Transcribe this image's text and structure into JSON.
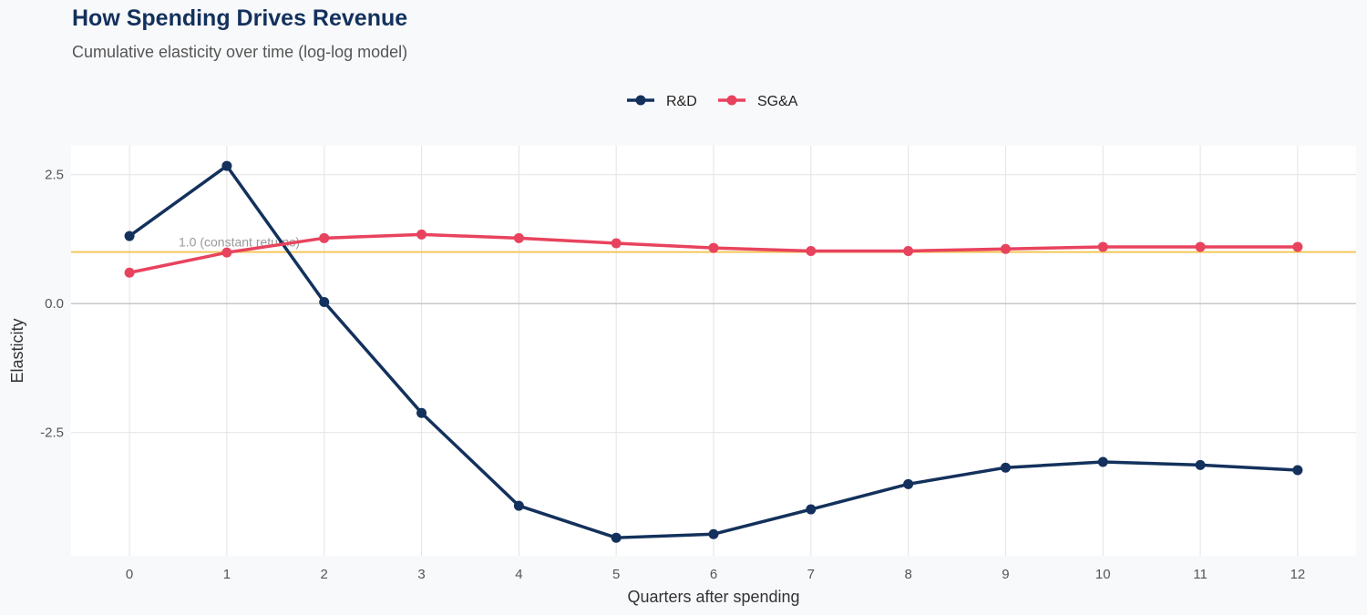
{
  "chart_data": {
    "type": "line",
    "title": "How Spending Drives Revenue",
    "subtitle": "Cumulative elasticity over time (log-log model)",
    "xlabel": "Quarters after spending",
    "ylabel": "Elasticity",
    "x": [
      0,
      1,
      2,
      3,
      4,
      5,
      6,
      7,
      8,
      9,
      10,
      11,
      12
    ],
    "xticks": [
      "0",
      "1",
      "2",
      "3",
      "4",
      "5",
      "6",
      "7",
      "8",
      "9",
      "10",
      "11",
      "12"
    ],
    "yticks": [
      {
        "v": 2.5,
        "label": "2.5"
      },
      {
        "v": 0,
        "label": "0.0"
      },
      {
        "v": -2.5,
        "label": "-2.5"
      }
    ],
    "xlim": [
      -0.6,
      12.6
    ],
    "ylim": [
      -4.89,
      3.06
    ],
    "grid": true,
    "legend_position": "top",
    "reference_line": {
      "y": 1.0,
      "label": "1.0 (constant returns)",
      "color": "#f5c65a"
    },
    "zero_line_color": "#c8c8c8",
    "series": [
      {
        "name": "R&D",
        "color": "#13315c",
        "values": [
          1.31,
          2.67,
          0.03,
          -2.12,
          -3.92,
          -4.54,
          -4.47,
          -3.99,
          -3.5,
          -3.18,
          -3.07,
          -3.13,
          -3.23
        ]
      },
      {
        "name": "SG&A",
        "color": "#e8435e",
        "values": [
          0.6,
          0.99,
          1.27,
          1.34,
          1.27,
          1.17,
          1.08,
          1.02,
          1.02,
          1.06,
          1.1,
          1.1,
          1.1
        ]
      }
    ]
  }
}
